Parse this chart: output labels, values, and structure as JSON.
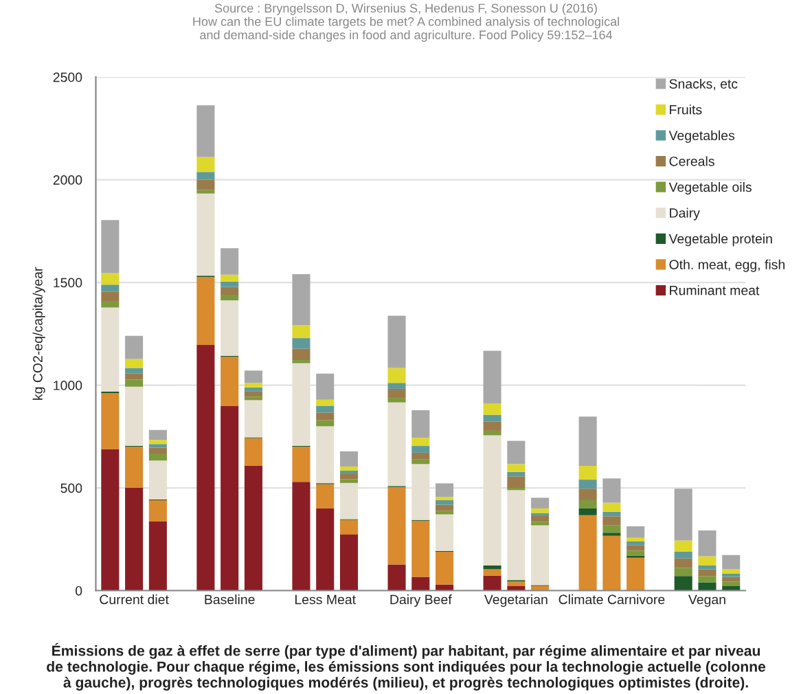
{
  "chart_data": {
    "type": "bar",
    "stacked": true,
    "categories": [
      null,
      "Current diet",
      null,
      null,
      null,
      "Baseline",
      null,
      null,
      null,
      "Less Meat",
      null,
      null,
      null,
      "Dairy Beef",
      null,
      null,
      null,
      "Vegetarian",
      null,
      null,
      null,
      "Climate Carnivore",
      null,
      null,
      null,
      "Vegan",
      null
    ],
    "series": [
      {
        "name": "Ruminant meat",
        "color": "#8b1e24",
        "values": [
          689,
          500,
          338,
          null,
          1196,
          898,
          609,
          null,
          529,
          400,
          273,
          null,
          127,
          67,
          29,
          null,
          73,
          22,
          null,
          null,
          0,
          0,
          0,
          null,
          0,
          0,
          0
        ]
      },
      {
        "name": "Oth. meat, egg, fish",
        "color": "#d98b2e",
        "values": [
          273,
          200,
          102,
          null,
          331,
          240,
          133,
          null,
          171,
          118,
          71,
          null,
          377,
          273,
          160,
          null,
          31,
          22,
          23,
          null,
          367,
          267,
          160,
          null,
          0,
          0,
          0
        ]
      },
      {
        "name": "Vegetable protein",
        "color": "#1f5a2a",
        "values": [
          6,
          5,
          4,
          null,
          6,
          5,
          4,
          null,
          5,
          5,
          4,
          null,
          5,
          4,
          3,
          null,
          18,
          7,
          4,
          null,
          33,
          15,
          11,
          null,
          71,
          40,
          22
        ]
      },
      {
        "name": "Dairy",
        "color": "#e6e0d2",
        "values": [
          410,
          288,
          189,
          null,
          400,
          270,
          181,
          null,
          402,
          277,
          176,
          null,
          407,
          272,
          179,
          null,
          634,
          438,
          291,
          null,
          null,
          null,
          null,
          null,
          0,
          0,
          0
        ]
      },
      {
        "name": "Vegetable oils",
        "color": "#7d9a3c",
        "values": [
          32,
          34,
          34,
          null,
          18,
          27,
          17,
          null,
          15,
          29,
          18,
          null,
          22,
          24,
          18,
          null,
          22,
          11,
          16,
          null,
          40,
          35,
          24,
          null,
          40,
          31,
          22
        ]
      },
      {
        "name": "Cereals",
        "color": "#9b7b4a",
        "values": [
          46,
          29,
          29,
          null,
          49,
          38,
          27,
          null,
          56,
          38,
          25,
          null,
          44,
          31,
          29,
          null,
          44,
          56,
          29,
          null,
          56,
          45,
          27,
          null,
          45,
          33,
          23
        ]
      },
      {
        "name": "Vegetables",
        "color": "#5f9a9a",
        "values": [
          33,
          28,
          17,
          null,
          38,
          26,
          18,
          null,
          51,
          33,
          17,
          null,
          29,
          33,
          22,
          null,
          34,
          22,
          15,
          null,
          44,
          22,
          17,
          null,
          33,
          18,
          15
        ]
      },
      {
        "name": "Fruits",
        "color": "#dfd82c",
        "values": [
          56,
          43,
          20,
          null,
          73,
          34,
          22,
          null,
          64,
          29,
          20,
          null,
          73,
          40,
          16,
          null,
          55,
          38,
          22,
          null,
          67,
          44,
          18,
          null,
          55,
          45,
          22
        ]
      },
      {
        "name": "Snacks, etc",
        "color": "#a8a8a8",
        "values": [
          259,
          113,
          49,
          null,
          251,
          129,
          60,
          null,
          247,
          127,
          74,
          null,
          254,
          134,
          66,
          null,
          256,
          113,
          52,
          null,
          240,
          118,
          56,
          null,
          252,
          126,
          69
        ]
      }
    ],
    "ylabel": "kg CO2-eq/capita/year",
    "ylim": [
      0,
      2500
    ],
    "yticks": [
      0,
      500,
      1000,
      1500,
      2000,
      2500
    ],
    "grid": "y",
    "legend": "top right",
    "annotations": [
      "Source : Bryngelsson D, Wirsenius S, Hedenus F, Sonesson U (2016)\nHow can the EU climate targets be met? A combined analysis of technological\nand demand-side changes in food and agriculture. Food Policy 59:152–164",
      "Émissions de gaz à effet de serre (par type d'aliment) par habitant, par régime alimentaire et par niveau\nde technologie. Pour chaque régime, les émissions sont indiquées pour la technologie actuelle (colonne\nà gauche), progrès technologiques modérés (milieu), et progrès technologiques optimistes (droite)."
    ]
  }
}
